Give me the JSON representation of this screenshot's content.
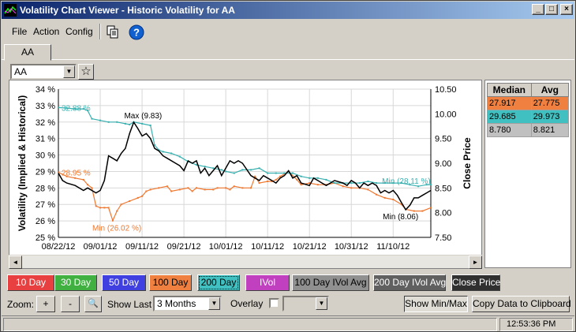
{
  "window": {
    "title": "Volatility Chart Viewer - Historic Volatility for AA",
    "minimize_glyph": "_",
    "maximize_glyph": "□",
    "close_glyph": "×"
  },
  "menu": {
    "file": "File",
    "action": "Action",
    "config": "Config",
    "copy_icon": "copy-icon",
    "help_icon": "help-icon",
    "help_glyph": "?"
  },
  "tabs": [
    {
      "label": "AA"
    }
  ],
  "symbol": {
    "value": "AA",
    "star_glyph": "☆",
    "drop_glyph": "▼"
  },
  "chart_data": {
    "type": "line",
    "x_tick_labels": [
      "08/22/12",
      "09/01/12",
      "09/11/12",
      "09/21/12",
      "10/01/12",
      "10/11/12",
      "10/21/12",
      "10/31/12",
      "11/10/12"
    ],
    "x_tick_days": [
      0,
      10,
      20,
      30,
      40,
      50,
      60,
      70,
      80
    ],
    "x_range_days": [
      0,
      89
    ],
    "left_axis": {
      "label": "Volatility (Implied & Historical)",
      "min": 25,
      "max": 34,
      "ticks": [
        "25 %",
        "26 %",
        "27 %",
        "28 %",
        "29 %",
        "30 %",
        "31 %",
        "32 %",
        "33 %",
        "34 %"
      ]
    },
    "right_axis": {
      "label": "Close Price",
      "min": 7.5,
      "max": 10.5,
      "ticks": [
        "7.50",
        "8.00",
        "8.50",
        "9.00",
        "9.50",
        "10.00",
        "10.50"
      ]
    },
    "grid": true,
    "series": [
      {
        "color": "#f07830",
        "axis": "left",
        "points": [
          [
            0,
            28.95
          ],
          [
            2,
            28.7
          ],
          [
            4,
            28.6
          ],
          [
            6,
            28.5
          ],
          [
            7,
            28.2
          ],
          [
            8,
            28.0
          ],
          [
            9,
            26.9
          ],
          [
            10,
            26.8
          ],
          [
            11,
            26.8
          ],
          [
            12,
            26.8
          ],
          [
            13,
            26.02
          ],
          [
            14,
            26.6
          ],
          [
            15,
            27.0
          ],
          [
            17,
            27.2
          ],
          [
            19,
            27.4
          ],
          [
            20,
            27.5
          ],
          [
            21,
            27.8
          ],
          [
            22,
            27.9
          ],
          [
            24,
            28.0
          ],
          [
            26,
            28.1
          ],
          [
            27,
            27.8
          ],
          [
            29,
            27.9
          ],
          [
            31,
            28.0
          ],
          [
            32,
            27.8
          ],
          [
            33,
            28.0
          ],
          [
            35,
            27.9
          ],
          [
            37,
            27.9
          ],
          [
            38,
            28.0
          ],
          [
            40,
            28.0
          ],
          [
            41,
            27.9
          ],
          [
            42,
            28.1
          ],
          [
            44,
            28.0
          ],
          [
            46,
            28.0
          ],
          [
            47,
            28.7
          ],
          [
            48,
            28.3
          ],
          [
            50,
            28.4
          ],
          [
            51,
            28.4
          ],
          [
            52,
            28.5
          ],
          [
            53,
            28.7
          ],
          [
            55,
            29.0
          ],
          [
            57,
            28.5
          ],
          [
            58,
            28.2
          ],
          [
            60,
            28.3
          ],
          [
            62,
            28.2
          ],
          [
            64,
            28.2
          ],
          [
            66,
            28.3
          ],
          [
            68,
            28.1
          ],
          [
            70,
            28.0
          ],
          [
            72,
            28.0
          ],
          [
            74,
            27.9
          ],
          [
            76,
            27.6
          ],
          [
            78,
            27.4
          ],
          [
            80,
            27.3
          ],
          [
            82,
            27.0
          ],
          [
            83,
            26.7
          ],
          [
            85,
            26.6
          ],
          [
            87,
            26.6
          ],
          [
            89,
            26.8
          ]
        ]
      },
      {
        "color": "#38b0b0",
        "axis": "left",
        "points": [
          [
            0,
            32.88
          ],
          [
            2,
            32.85
          ],
          [
            4,
            32.8
          ],
          [
            6,
            32.8
          ],
          [
            7,
            32.7
          ],
          [
            8,
            32.2
          ],
          [
            10,
            32.1
          ],
          [
            12,
            32.0
          ],
          [
            14,
            32.0
          ],
          [
            16,
            31.9
          ],
          [
            17,
            31.85
          ],
          [
            18,
            32.0
          ],
          [
            20,
            31.9
          ],
          [
            22,
            31.8
          ],
          [
            23,
            30.6
          ],
          [
            24,
            30.3
          ],
          [
            25,
            30.2
          ],
          [
            27,
            30.1
          ],
          [
            29,
            29.9
          ],
          [
            31,
            29.6
          ],
          [
            33,
            29.4
          ],
          [
            35,
            29.3
          ],
          [
            37,
            29.2
          ],
          [
            39,
            29.1
          ],
          [
            40,
            29.0
          ],
          [
            42,
            28.9
          ],
          [
            44,
            29.1
          ],
          [
            46,
            29.1
          ],
          [
            48,
            29.2
          ],
          [
            50,
            28.9
          ],
          [
            52,
            28.9
          ],
          [
            54,
            28.9
          ],
          [
            56,
            28.9
          ],
          [
            58,
            28.7
          ],
          [
            60,
            28.6
          ],
          [
            62,
            28.6
          ],
          [
            64,
            28.5
          ],
          [
            66,
            28.3
          ],
          [
            68,
            28.3
          ],
          [
            70,
            28.3
          ],
          [
            72,
            28.3
          ],
          [
            74,
            28.4
          ],
          [
            76,
            28.3
          ],
          [
            78,
            28.3
          ],
          [
            80,
            28.3
          ],
          [
            82,
            28.3
          ],
          [
            84,
            28.2
          ],
          [
            86,
            28.1
          ],
          [
            88,
            28.2
          ],
          [
            89,
            28.2
          ]
        ]
      },
      {
        "color": "#000000",
        "axis": "right",
        "points": [
          [
            0,
            8.8
          ],
          [
            1,
            8.65
          ],
          [
            2,
            8.6
          ],
          [
            4,
            8.55
          ],
          [
            6,
            8.45
          ],
          [
            7,
            8.5
          ],
          [
            8,
            8.45
          ],
          [
            9,
            8.4
          ],
          [
            10,
            8.45
          ],
          [
            11,
            8.65
          ],
          [
            12,
            9.15
          ],
          [
            13,
            9.1
          ],
          [
            14,
            9.05
          ],
          [
            15,
            9.2
          ],
          [
            16,
            9.3
          ],
          [
            17,
            9.6
          ],
          [
            18,
            9.83
          ],
          [
            19,
            9.7
          ],
          [
            20,
            9.55
          ],
          [
            21,
            9.6
          ],
          [
            22,
            9.5
          ],
          [
            23,
            9.3
          ],
          [
            24,
            9.25
          ],
          [
            25,
            9.15
          ],
          [
            26,
            9.1
          ],
          [
            28,
            9.0
          ],
          [
            29,
            8.95
          ],
          [
            30,
            8.85
          ],
          [
            31,
            9.05
          ],
          [
            32,
            9.0
          ],
          [
            33,
            9.05
          ],
          [
            34,
            8.8
          ],
          [
            35,
            8.9
          ],
          [
            36,
            8.75
          ],
          [
            37,
            8.85
          ],
          [
            38,
            8.95
          ],
          [
            39,
            8.75
          ],
          [
            40,
            8.9
          ],
          [
            41,
            9.05
          ],
          [
            42,
            9.0
          ],
          [
            43,
            9.05
          ],
          [
            44,
            9.0
          ],
          [
            46,
            8.75
          ],
          [
            47,
            8.7
          ],
          [
            48,
            8.65
          ],
          [
            49,
            8.75
          ],
          [
            50,
            8.7
          ],
          [
            51,
            8.65
          ],
          [
            52,
            8.6
          ],
          [
            53,
            8.7
          ],
          [
            54,
            8.75
          ],
          [
            55,
            8.85
          ],
          [
            56,
            8.7
          ],
          [
            57,
            8.75
          ],
          [
            58,
            8.6
          ],
          [
            60,
            8.55
          ],
          [
            61,
            8.7
          ],
          [
            62,
            8.65
          ],
          [
            63,
            8.6
          ],
          [
            64,
            8.55
          ],
          [
            65,
            8.6
          ],
          [
            66,
            8.65
          ],
          [
            68,
            8.6
          ],
          [
            69,
            8.55
          ],
          [
            70,
            8.65
          ],
          [
            71,
            8.6
          ],
          [
            72,
            8.5
          ],
          [
            73,
            8.6
          ],
          [
            74,
            8.55
          ],
          [
            75,
            8.6
          ],
          [
            76,
            8.55
          ],
          [
            77,
            8.4
          ],
          [
            78,
            8.45
          ],
          [
            79,
            8.4
          ],
          [
            80,
            8.45
          ],
          [
            81,
            8.35
          ],
          [
            82,
            8.2
          ],
          [
            83,
            8.06
          ],
          [
            84,
            8.15
          ],
          [
            85,
            8.3
          ],
          [
            86,
            8.3
          ],
          [
            87,
            8.35
          ],
          [
            88,
            8.4
          ],
          [
            89,
            8.45
          ]
        ]
      }
    ],
    "annotations": [
      {
        "text": "32.88 %",
        "color": "#38b0b0",
        "x": 0,
        "y": 32.88,
        "axis": "left"
      },
      {
        "text": "28.95 %",
        "color": "#f07830",
        "x": 0,
        "y": 28.95,
        "axis": "left"
      },
      {
        "text": "Max (9.83)",
        "color": "#000000",
        "x": 18,
        "y": 9.83,
        "axis": "right"
      },
      {
        "text": "Min (26.02 %)",
        "color": "#f07830",
        "x": 13,
        "y": 26.02,
        "axis": "left"
      },
      {
        "text": "Min (28.11 %)",
        "color": "#38b0b0",
        "x": 83,
        "y": 28.11,
        "axis": "left"
      },
      {
        "text": "Min (8.06)",
        "color": "#000000",
        "x": 83,
        "y": 8.06,
        "axis": "right"
      }
    ]
  },
  "stats": {
    "headers": [
      "Median",
      "Avg"
    ],
    "rows": [
      {
        "median": "27.917",
        "avg": "27.775",
        "bg": "#f08040"
      },
      {
        "median": "29.685",
        "avg": "29.973",
        "bg": "#40c0c0"
      },
      {
        "median": "8.780",
        "avg": "8.821",
        "bg": "#c0c0c0"
      }
    ]
  },
  "scroll": {
    "left_glyph": "◄",
    "right_glyph": "►"
  },
  "series_buttons": [
    {
      "label": "10 Day",
      "bg": "#e84040",
      "fg": "#ffffff"
    },
    {
      "label": "30 Day",
      "bg": "#40b040",
      "fg": "#ffffff"
    },
    {
      "label": "50 Day",
      "bg": "#4040e0",
      "fg": "#ffffff"
    },
    {
      "label": "100 Day",
      "bg": "#f08040",
      "fg": "#000000"
    },
    {
      "label": "200 Day",
      "bg": "#40c0c0",
      "fg": "#000000"
    },
    {
      "label": "IVol",
      "bg": "#c040c0",
      "fg": "#ffffff"
    },
    {
      "label": "100 Day IVol Avg",
      "bg": "#909090",
      "fg": "#000000"
    },
    {
      "label": "200 Day IVol Avg",
      "bg": "#606060",
      "fg": "#ffffff"
    },
    {
      "label": "Close Price",
      "bg": "#303030",
      "fg": "#ffffff"
    }
  ],
  "controls": {
    "zoom_label": "Zoom:",
    "zoom_in": "+",
    "zoom_out": "-",
    "zoom_tool_glyph": "🔍",
    "show_last_label": "Show Last",
    "show_last_value": "3 Months",
    "overlay_label": "Overlay",
    "show_minmax": "Show Min/Max",
    "copy_data": "Copy Data to Clipboard"
  },
  "status": {
    "time": "12:53:36 PM"
  }
}
